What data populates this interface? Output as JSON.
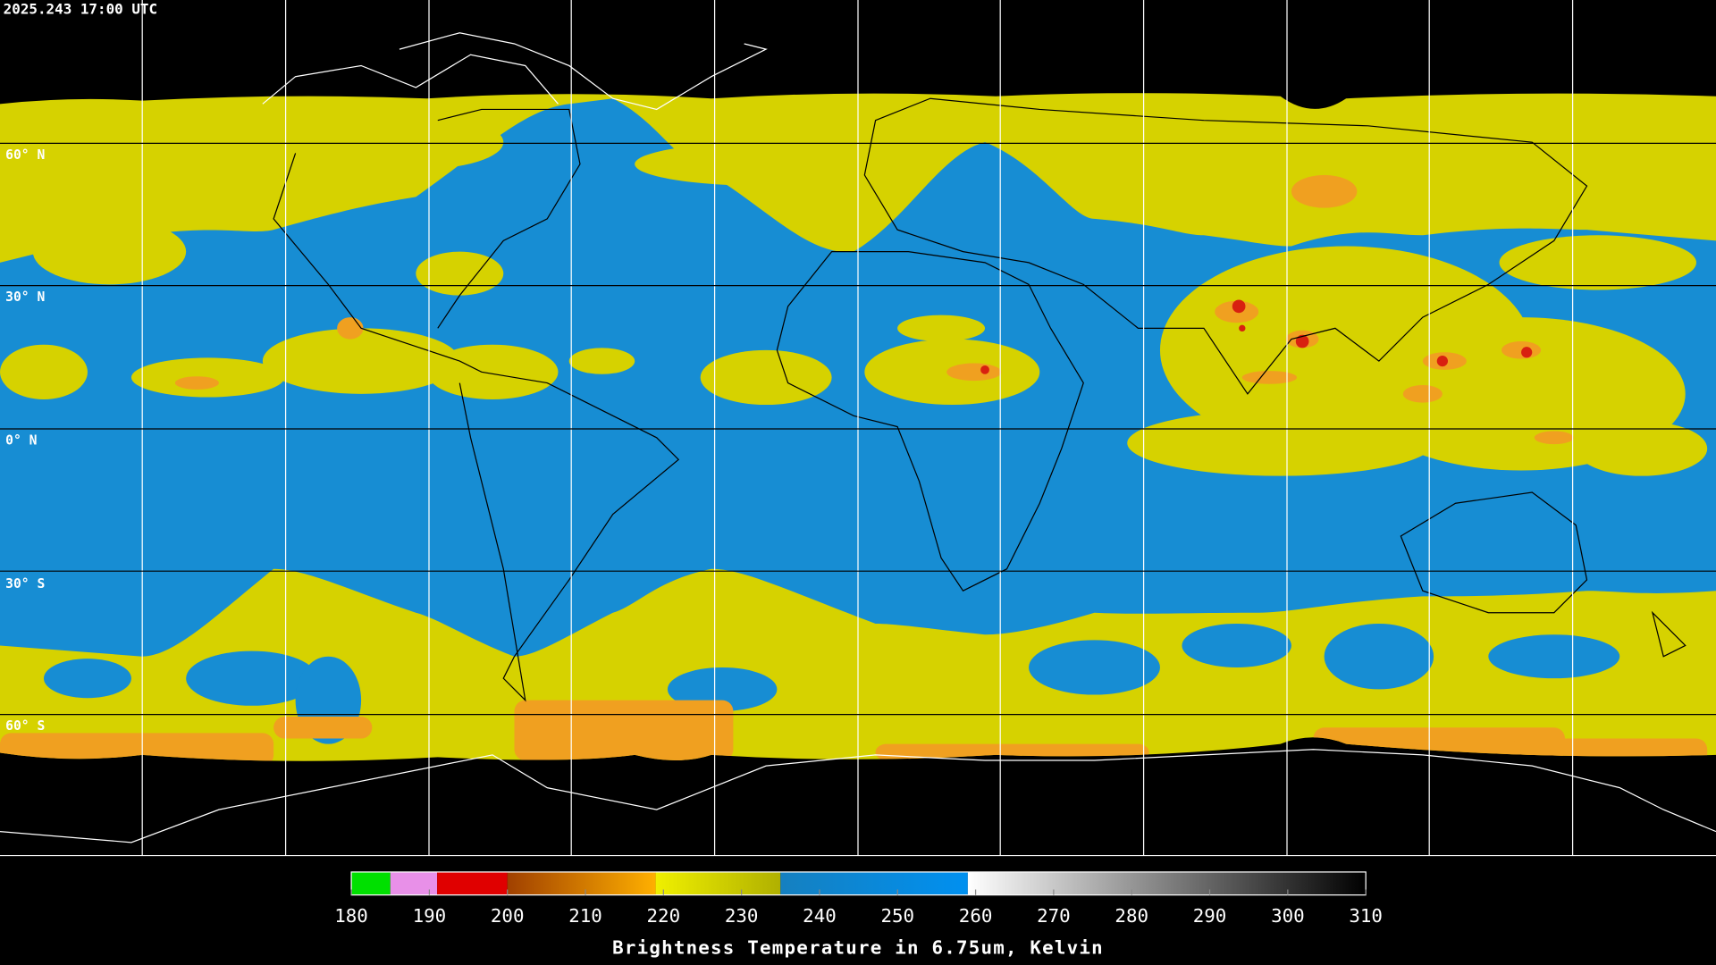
{
  "header": {
    "timestamp": "2025.243 17:00 UTC"
  },
  "map": {
    "latitude_labels": [
      "60° N",
      "30° N",
      "0° N",
      "30° S",
      "60° S"
    ]
  },
  "colorbar": {
    "title": "Brightness Temperature in 6.75um, Kelvin",
    "range": [
      180,
      310
    ],
    "ticks": [
      180,
      190,
      200,
      210,
      220,
      230,
      240,
      250,
      260,
      270,
      280,
      290,
      300,
      310
    ],
    "segments": [
      {
        "from": 180,
        "to": 185,
        "color_start": "#00e000",
        "color_end": "#00e000"
      },
      {
        "from": 185,
        "to": 191,
        "color_start": "#e890e8",
        "color_end": "#e890e8"
      },
      {
        "from": 191,
        "to": 200,
        "color_start": "#e00000",
        "color_end": "#e00000"
      },
      {
        "from": 200,
        "to": 219,
        "color_start": "#a04000",
        "color_end": "#ffb000"
      },
      {
        "from": 219,
        "to": 235,
        "color_start": "#f0f000",
        "color_end": "#b0b000"
      },
      {
        "from": 235,
        "to": 259,
        "color_start": "#1580c0",
        "color_end": "#0090f0"
      },
      {
        "from": 259,
        "to": 310,
        "color_start": "#ffffff",
        "color_end": "#000000"
      }
    ]
  }
}
